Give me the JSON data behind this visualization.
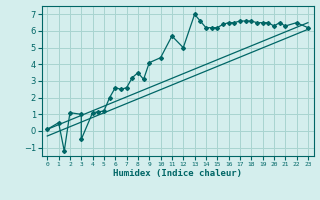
{
  "xlabel": "Humidex (Indice chaleur)",
  "ylabel": "",
  "bg_color": "#d4eeed",
  "grid_color": "#a8d4d0",
  "line_color": "#006666",
  "xlim": [
    -0.5,
    23.5
  ],
  "ylim": [
    -1.5,
    7.5
  ],
  "yticks": [
    -1,
    0,
    1,
    2,
    3,
    4,
    5,
    6,
    7
  ],
  "xticks": [
    0,
    1,
    2,
    3,
    4,
    5,
    6,
    7,
    8,
    9,
    10,
    11,
    12,
    13,
    14,
    15,
    16,
    17,
    18,
    19,
    20,
    21,
    22,
    23
  ],
  "data_x": [
    0,
    1,
    1.5,
    2,
    3,
    3,
    4,
    4.5,
    5,
    5.5,
    6,
    6.5,
    7,
    7.5,
    8,
    8.5,
    9,
    10,
    11,
    12,
    13,
    13.5,
    14,
    14.5,
    15,
    15.5,
    16,
    16.5,
    17,
    17.5,
    18,
    18.5,
    19,
    19.5,
    20,
    20.5,
    21,
    22,
    23
  ],
  "data_y": [
    0.1,
    0.5,
    -1.2,
    1.1,
    1.0,
    -0.5,
    1.1,
    1.15,
    1.2,
    2.0,
    2.6,
    2.5,
    2.6,
    3.2,
    3.5,
    3.1,
    4.1,
    4.4,
    5.7,
    5.0,
    7.0,
    6.6,
    6.2,
    6.2,
    6.2,
    6.4,
    6.5,
    6.5,
    6.6,
    6.6,
    6.6,
    6.5,
    6.5,
    6.5,
    6.3,
    6.5,
    6.3,
    6.5,
    6.2
  ],
  "line1_x": [
    0,
    23
  ],
  "line1_y": [
    0.1,
    6.5
  ],
  "line2_x": [
    0,
    23
  ],
  "line2_y": [
    -0.3,
    6.1
  ]
}
